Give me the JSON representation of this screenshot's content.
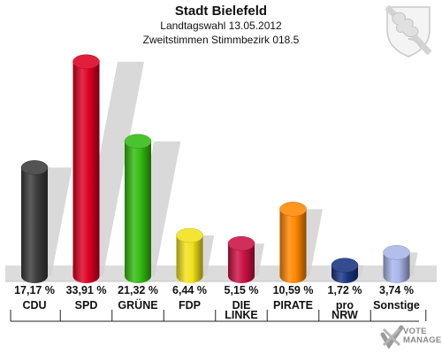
{
  "header": {
    "title": "Stadt Bielefeld",
    "subtitle": "Landtagswahl 13.05.2012",
    "subtitle2": "Zweitstimmen Stimmbezirk 018.5"
  },
  "brand": {
    "line1": "VOTE",
    "line2": "MANAGER"
  },
  "chart_data": {
    "type": "bar",
    "title": "Stadt Bielefeld",
    "subtitle": "Landtagswahl 13.05.2012 · Zweitstimmen Stimmbezirk 018.5",
    "categories": [
      "CDU",
      "SPD",
      "GRÜNE",
      "FDP",
      "DIE LINKE",
      "PIRATE",
      "pro NRW",
      "Sonstige"
    ],
    "category_lines": [
      [
        "CDU"
      ],
      [
        "SPD"
      ],
      [
        "GRÜNE"
      ],
      [
        "FDP"
      ],
      [
        "DIE",
        "LINKE"
      ],
      [
        "PIRATE"
      ],
      [
        "pro",
        "NRW"
      ],
      [
        "Sonstige"
      ]
    ],
    "values": [
      17.17,
      33.91,
      21.32,
      6.44,
      5.15,
      10.59,
      1.72,
      3.74
    ],
    "value_labels": [
      "17,17 %",
      "33,91 %",
      "21,32 %",
      "6,44 %",
      "5,15 %",
      "10,59 %",
      "1,72 %",
      "3,74 %"
    ],
    "colors": [
      "#3b3b3b",
      "#dd0022",
      "#33bb11",
      "#f2e21a",
      "#cc1144",
      "#ff8800",
      "#1a3480",
      "#a9b6e8"
    ],
    "ylim": [
      0,
      35
    ],
    "xlabel": "",
    "ylabel": "",
    "legend": "none",
    "grid": false
  }
}
